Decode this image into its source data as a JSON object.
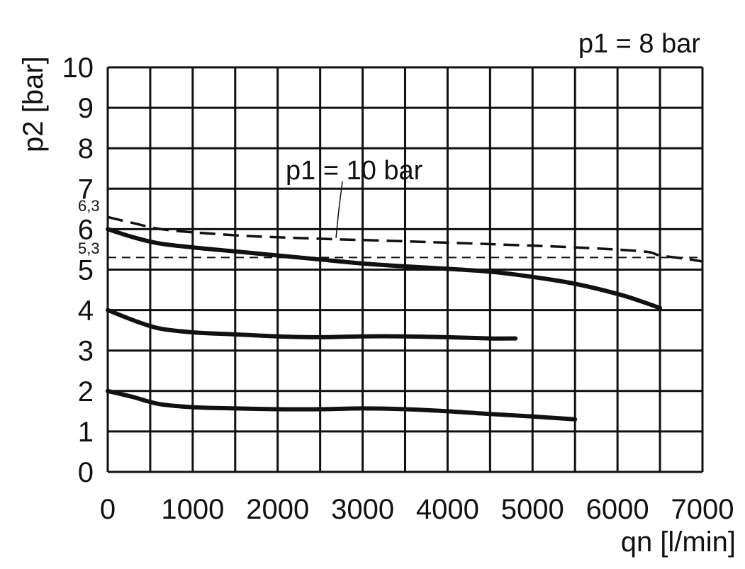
{
  "chart_data": {
    "type": "line",
    "xlabel": "qn [l/min]",
    "ylabel": "p2 [bar]",
    "xlim": [
      0,
      7000
    ],
    "ylim": [
      0,
      10
    ],
    "x_ticks": [
      0,
      1000,
      2000,
      3000,
      4000,
      5000,
      6000,
      7000
    ],
    "y_ticks": [
      0,
      1,
      2,
      3,
      4,
      5,
      6,
      7,
      8,
      9,
      10
    ],
    "grid": true,
    "annotations": {
      "p1_8": "p1 = 8 bar",
      "p1_10": "p1 = 10 bar",
      "ref_63": "6,3",
      "ref_53": "5,3"
    },
    "reference_lines": [
      {
        "label": "5,3",
        "y": 5.3,
        "style": "dashed"
      }
    ],
    "series": [
      {
        "style": "dashed",
        "x": [
          0,
          300,
          700,
          1500,
          2000,
          2700,
          3500,
          4500,
          5500,
          6300,
          6500,
          6800,
          7000
        ],
        "y": [
          6.3,
          6.15,
          5.98,
          5.85,
          5.8,
          5.75,
          5.7,
          5.63,
          5.55,
          5.45,
          5.35,
          5.27,
          5.2
        ]
      },
      {
        "style": "solid",
        "x": [
          0,
          300,
          600,
          1000,
          1500,
          2000,
          2500,
          3000,
          3500,
          4000,
          4500,
          5000,
          5500,
          6000,
          6300,
          6500
        ],
        "y": [
          6.0,
          5.8,
          5.65,
          5.55,
          5.45,
          5.35,
          5.25,
          5.15,
          5.08,
          5.02,
          4.95,
          4.82,
          4.65,
          4.4,
          4.2,
          4.05
        ]
      },
      {
        "style": "solid",
        "x": [
          0,
          300,
          600,
          1000,
          1500,
          2000,
          2500,
          3000,
          3500,
          4000,
          4500,
          4800
        ],
        "y": [
          4.0,
          3.75,
          3.55,
          3.45,
          3.4,
          3.35,
          3.33,
          3.35,
          3.35,
          3.33,
          3.3,
          3.3
        ]
      },
      {
        "style": "solid",
        "x": [
          0,
          300,
          600,
          1000,
          1500,
          2000,
          2500,
          3000,
          3500,
          4000,
          4500,
          5000,
          5500
        ],
        "y": [
          2.0,
          1.85,
          1.68,
          1.6,
          1.57,
          1.55,
          1.55,
          1.57,
          1.55,
          1.5,
          1.43,
          1.37,
          1.3
        ]
      }
    ]
  }
}
